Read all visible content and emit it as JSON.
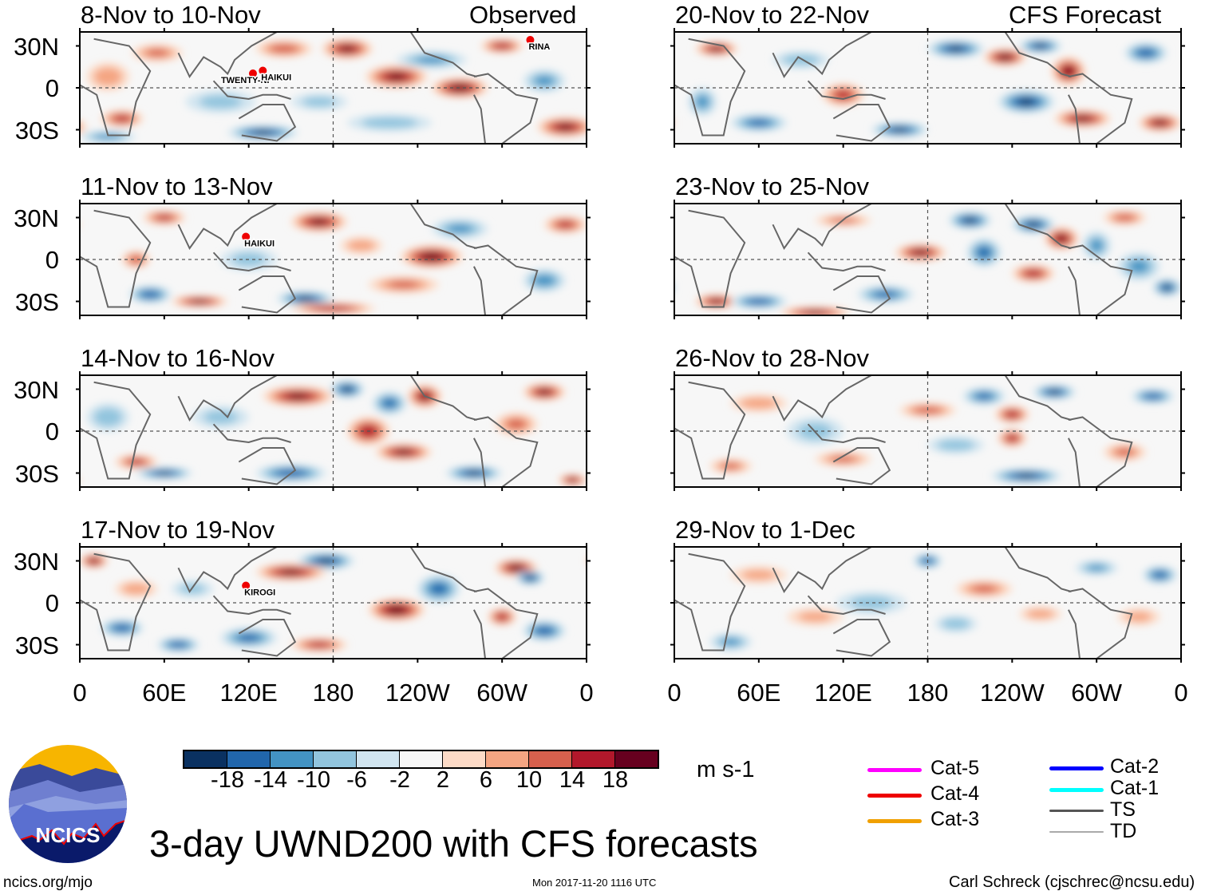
{
  "header": {
    "left_label": "Observed",
    "right_label": "CFS Forecast"
  },
  "title": "3-day UWND200 with CFS forecasts",
  "units": "m s-1",
  "url": "ncics.org/mjo",
  "timestamp": "Mon 2017-11-20 1116 UTC",
  "author": "Carl Schreck (cjschrec@ncsu.edu)",
  "logo_text": "NCICS",
  "y_ticks": [
    "30N",
    "0",
    "30S"
  ],
  "x_ticks": [
    "0",
    "60E",
    "120E",
    "180",
    "120W",
    "60W",
    "0"
  ],
  "colorbar": {
    "labels": [
      "-18",
      "-14",
      "-10",
      "-6",
      "-2",
      "2",
      "6",
      "10",
      "14",
      "18"
    ],
    "colors": [
      "#0a3161",
      "#2166ac",
      "#4393c3",
      "#92c5de",
      "#d1e5f0",
      "#f7f7f7",
      "#fddbc7",
      "#f4a582",
      "#d6604d",
      "#b2182b",
      "#67001f"
    ]
  },
  "legend": [
    {
      "label": "Cat-5",
      "color": "#ff00ff"
    },
    {
      "label": "Cat-4",
      "color": "#ee0000"
    },
    {
      "label": "Cat-3",
      "color": "#f0a000"
    },
    {
      "label": "Cat-2",
      "color": "#0000ff"
    },
    {
      "label": "Cat-1",
      "color": "#00ffff"
    },
    {
      "label": "TS",
      "color": "#555555"
    },
    {
      "label": "TD",
      "color": "#aaaaaa"
    }
  ],
  "panels": [
    {
      "title": "8-Nov to 10-Nov",
      "storms": [
        {
          "name": "TWENTY-NI",
          "lon": 123,
          "lat": 8
        },
        {
          "name": "HAIKUI",
          "lon": 130,
          "lat": 10
        },
        {
          "name": "RINA",
          "lon": 320,
          "lat": 32
        }
      ],
      "blobs": [
        [
          30,
          -22,
          14,
          15,
          6
        ],
        [
          55,
          25,
          10,
          18,
          6
        ],
        [
          145,
          28,
          12,
          20,
          6
        ],
        [
          190,
          28,
          18,
          18,
          7
        ],
        [
          225,
          8,
          18,
          22,
          8
        ],
        [
          270,
          0,
          20,
          20,
          7
        ],
        [
          250,
          20,
          -10,
          25,
          6
        ],
        [
          220,
          -25,
          -8,
          30,
          6
        ],
        [
          130,
          -32,
          -18,
          25,
          5
        ],
        [
          345,
          -28,
          18,
          20,
          7
        ],
        [
          300,
          30,
          16,
          15,
          5
        ],
        [
          100,
          -10,
          -6,
          25,
          8
        ],
        [
          20,
          8,
          8,
          15,
          10
        ],
        [
          330,
          5,
          -10,
          15,
          8
        ],
        [
          170,
          -10,
          -6,
          20,
          6
        ],
        [
          20,
          -35,
          -12,
          20,
          4
        ]
      ]
    },
    {
      "title": "11-Nov to 13-Nov",
      "storms": [
        {
          "name": "HAIKUI",
          "lon": 118,
          "lat": 14
        }
      ],
      "blobs": [
        [
          170,
          27,
          18,
          20,
          7
        ],
        [
          60,
          30,
          14,
          15,
          5
        ],
        [
          250,
          2,
          20,
          22,
          8
        ],
        [
          230,
          -18,
          10,
          25,
          6
        ],
        [
          270,
          22,
          -10,
          20,
          7
        ],
        [
          50,
          -25,
          -16,
          15,
          6
        ],
        [
          85,
          -30,
          18,
          20,
          4
        ],
        [
          160,
          -28,
          -18,
          20,
          5
        ],
        [
          180,
          -35,
          16,
          30,
          4
        ],
        [
          40,
          0,
          12,
          10,
          6
        ],
        [
          330,
          -15,
          -12,
          15,
          8
        ],
        [
          345,
          25,
          14,
          15,
          6
        ],
        [
          120,
          0,
          -6,
          20,
          8
        ],
        [
          200,
          10,
          8,
          15,
          6
        ]
      ]
    },
    {
      "title": "14-Nov to 16-Nov",
      "storms": [],
      "blobs": [
        [
          190,
          30,
          -18,
          12,
          6
        ],
        [
          220,
          20,
          -14,
          12,
          8
        ],
        [
          155,
          25,
          18,
          25,
          7
        ],
        [
          245,
          25,
          18,
          12,
          8
        ],
        [
          205,
          0,
          16,
          15,
          10
        ],
        [
          230,
          -15,
          18,
          20,
          6
        ],
        [
          40,
          -22,
          14,
          15,
          5
        ],
        [
          60,
          -30,
          -18,
          20,
          4
        ],
        [
          150,
          -30,
          -16,
          25,
          6
        ],
        [
          280,
          -30,
          -18,
          20,
          5
        ],
        [
          330,
          28,
          18,
          15,
          6
        ],
        [
          20,
          10,
          -8,
          15,
          10
        ],
        [
          310,
          5,
          10,
          15,
          8
        ],
        [
          350,
          -35,
          18,
          10,
          4
        ],
        [
          100,
          10,
          -6,
          20,
          8
        ]
      ]
    },
    {
      "title": "17-Nov to 19-Nov",
      "storms": [
        {
          "name": "KIROGI",
          "lon": 118,
          "lat": 10
        }
      ],
      "blobs": [
        [
          10,
          30,
          18,
          10,
          5
        ],
        [
          175,
          30,
          -18,
          20,
          6
        ],
        [
          150,
          22,
          18,
          25,
          6
        ],
        [
          225,
          -5,
          20,
          20,
          8
        ],
        [
          255,
          10,
          -14,
          15,
          10
        ],
        [
          310,
          25,
          20,
          15,
          6
        ],
        [
          320,
          18,
          -18,
          10,
          5
        ],
        [
          30,
          -18,
          -16,
          15,
          6
        ],
        [
          70,
          -30,
          -16,
          15,
          5
        ],
        [
          120,
          -25,
          -14,
          20,
          7
        ],
        [
          170,
          -30,
          14,
          20,
          5
        ],
        [
          330,
          -20,
          -16,
          15,
          7
        ],
        [
          300,
          -10,
          16,
          10,
          6
        ],
        [
          40,
          10,
          8,
          15,
          6
        ],
        [
          80,
          10,
          -6,
          15,
          6
        ]
      ]
    },
    {
      "title": "20-Nov to 22-Nov",
      "storms": [],
      "blobs": [
        [
          30,
          28,
          18,
          15,
          5
        ],
        [
          120,
          -5,
          14,
          15,
          8
        ],
        [
          200,
          28,
          -18,
          20,
          6
        ],
        [
          235,
          22,
          20,
          15,
          6
        ],
        [
          260,
          30,
          -18,
          15,
          5
        ],
        [
          280,
          12,
          18,
          12,
          10
        ],
        [
          250,
          -10,
          -18,
          20,
          8
        ],
        [
          290,
          -22,
          18,
          20,
          6
        ],
        [
          335,
          25,
          -16,
          15,
          7
        ],
        [
          60,
          -25,
          -14,
          20,
          6
        ],
        [
          160,
          -30,
          -18,
          20,
          5
        ],
        [
          345,
          -25,
          18,
          15,
          6
        ],
        [
          90,
          20,
          -8,
          20,
          6
        ],
        [
          20,
          -10,
          -10,
          10,
          10
        ]
      ]
    },
    {
      "title": "23-Nov to 25-Nov",
      "storms": [],
      "blobs": [
        [
          210,
          28,
          -18,
          15,
          6
        ],
        [
          255,
          25,
          -18,
          15,
          6
        ],
        [
          275,
          15,
          18,
          12,
          8
        ],
        [
          175,
          5,
          18,
          18,
          6
        ],
        [
          220,
          5,
          -14,
          12,
          10
        ],
        [
          300,
          10,
          -10,
          10,
          10
        ],
        [
          30,
          -30,
          18,
          15,
          5
        ],
        [
          100,
          -38,
          18,
          25,
          4
        ],
        [
          60,
          -30,
          -16,
          20,
          5
        ],
        [
          150,
          -25,
          -14,
          20,
          6
        ],
        [
          255,
          -10,
          16,
          15,
          6
        ],
        [
          330,
          -5,
          -10,
          15,
          10
        ],
        [
          350,
          -20,
          -18,
          10,
          6
        ],
        [
          320,
          30,
          12,
          15,
          5
        ],
        [
          120,
          28,
          10,
          20,
          4
        ]
      ]
    },
    {
      "title": "26-Nov to 28-Nov",
      "storms": [],
      "blobs": [
        [
          270,
          28,
          -18,
          15,
          5
        ],
        [
          340,
          25,
          -16,
          15,
          5
        ],
        [
          220,
          25,
          -14,
          15,
          6
        ],
        [
          240,
          12,
          16,
          12,
          6
        ],
        [
          180,
          15,
          12,
          20,
          5
        ],
        [
          240,
          -5,
          16,
          10,
          6
        ],
        [
          200,
          -10,
          -8,
          20,
          6
        ],
        [
          120,
          -20,
          10,
          20,
          5
        ],
        [
          250,
          -32,
          -18,
          25,
          5
        ],
        [
          40,
          -25,
          10,
          15,
          5
        ],
        [
          320,
          -15,
          10,
          15,
          6
        ],
        [
          60,
          20,
          8,
          20,
          6
        ],
        [
          100,
          0,
          -6,
          20,
          10
        ]
      ]
    },
    {
      "title": "29-Nov to 1-Dec",
      "storms": [],
      "blobs": [
        [
          180,
          30,
          -16,
          10,
          5
        ],
        [
          345,
          20,
          -16,
          12,
          6
        ],
        [
          300,
          25,
          -10,
          15,
          5
        ],
        [
          220,
          10,
          10,
          20,
          6
        ],
        [
          140,
          0,
          -6,
          25,
          8
        ],
        [
          260,
          -8,
          8,
          15,
          5
        ],
        [
          200,
          -15,
          -8,
          15,
          6
        ],
        [
          40,
          -28,
          -10,
          15,
          6
        ],
        [
          100,
          -10,
          6,
          20,
          6
        ],
        [
          60,
          20,
          6,
          20,
          6
        ],
        [
          330,
          -10,
          6,
          15,
          6
        ]
      ]
    }
  ]
}
